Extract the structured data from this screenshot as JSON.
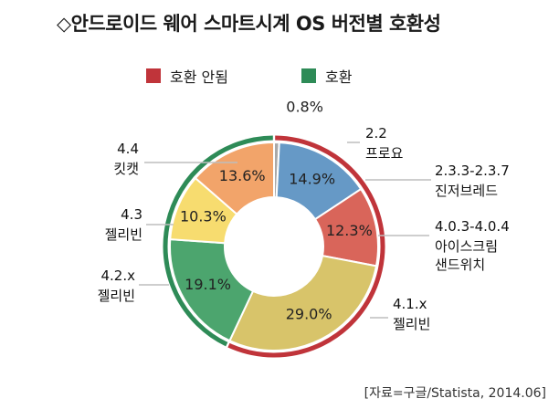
{
  "title": "◇안드로이드 웨어 스마트시계 OS 버전별 호환성",
  "legend": [
    {
      "label": "호환 안됨",
      "color": "#c0343a"
    },
    {
      "label": "호환",
      "color": "#2e8b57"
    }
  ],
  "source": "[자료=구글/Statista, 2014.06]",
  "chart_data": {
    "type": "pie",
    "title": "◇안드로이드 웨어 스마트시계 OS 버전별 호환성",
    "slices": [
      {
        "version": "2.2",
        "name": "프로요",
        "value": 0.8,
        "label": "0.8%",
        "color": "#a9a9a9"
      },
      {
        "version": "2.3.3-2.3.7",
        "name": "진저브레드",
        "value": 14.9,
        "label": "14.9%",
        "color": "#6699c6"
      },
      {
        "version": "4.0.3-4.0.4",
        "name": "아이스크림 샌드위치",
        "value": 12.3,
        "label": "12.3%",
        "color": "#d9655a"
      },
      {
        "version": "4.1.x",
        "name": "젤리빈",
        "value": 29.0,
        "label": "29.0%",
        "color": "#d8c46a"
      },
      {
        "version": "4.2.x",
        "name": "젤리빈",
        "value": 19.1,
        "label": "19.1%",
        "color": "#4ca56e"
      },
      {
        "version": "4.3",
        "name": "젤리빈",
        "value": 10.3,
        "label": "10.3%",
        "color": "#f7dc6f"
      },
      {
        "version": "4.4",
        "name": "킷캣",
        "value": 13.6,
        "label": "13.6%",
        "color": "#f2a46a"
      }
    ],
    "groups": [
      {
        "label": "호환 안됨",
        "color": "#c0343a",
        "slices": [
          0,
          1,
          2,
          3
        ]
      },
      {
        "label": "호환",
        "color": "#2e8b57",
        "slices": [
          4,
          5,
          6
        ]
      }
    ],
    "legend_position": "top"
  }
}
